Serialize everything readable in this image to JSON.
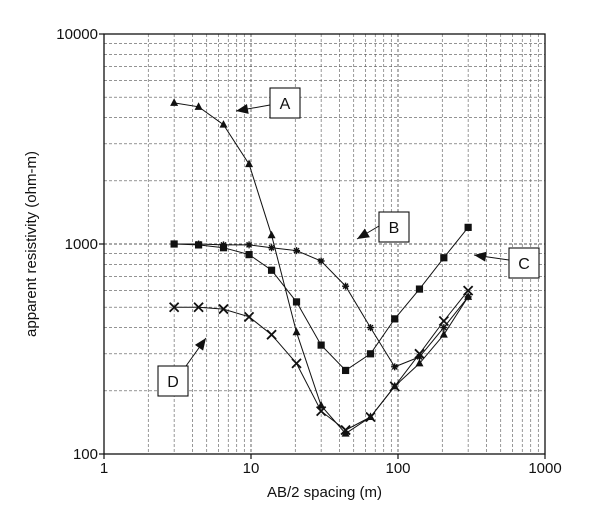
{
  "chart_data": {
    "type": "line",
    "xlabel": "AB/2 spacing (m)",
    "ylabel": "apparent resistivity (ohm-m)",
    "xscale": "log",
    "yscale": "log",
    "xlim": [
      1,
      1000
    ],
    "ylim": [
      100,
      10000
    ],
    "grid": true,
    "x_tick_labels": [
      "1",
      "10",
      "100",
      "1000"
    ],
    "y_tick_labels": [
      "100",
      "1000",
      "10000"
    ],
    "series": [
      {
        "name": "A",
        "marker": "triangle",
        "x": [
          3,
          4.4,
          6.5,
          9.7,
          13.8,
          20.4,
          30,
          44,
          65,
          95,
          140,
          205,
          300
        ],
        "y": [
          4700,
          4500,
          3700,
          2400,
          1100,
          380,
          170,
          125,
          150,
          210,
          270,
          370,
          560
        ]
      },
      {
        "name": "B",
        "marker": "star",
        "x": [
          3,
          4.4,
          6.5,
          9.7,
          13.8,
          20.4,
          30,
          44,
          65,
          95,
          140,
          205,
          300
        ],
        "y": [
          1000,
          1000,
          990,
          990,
          960,
          930,
          830,
          630,
          400,
          260,
          290,
          400,
          560
        ]
      },
      {
        "name": "C",
        "marker": "square",
        "x": [
          3,
          4.4,
          6.5,
          9.7,
          13.8,
          20.4,
          30,
          44,
          65,
          95,
          140,
          205,
          300
        ],
        "y": [
          1000,
          990,
          960,
          890,
          750,
          530,
          330,
          250,
          300,
          440,
          610,
          860,
          1200
        ]
      },
      {
        "name": "D",
        "marker": "x",
        "x": [
          3,
          4.4,
          6.5,
          9.7,
          13.8,
          20.4,
          30,
          44,
          65,
          95,
          140,
          205,
          300
        ],
        "y": [
          500,
          500,
          490,
          450,
          370,
          270,
          160,
          130,
          150,
          210,
          300,
          430,
          600
        ]
      }
    ],
    "annotations": [
      {
        "label": "A",
        "target_series": "A"
      },
      {
        "label": "B",
        "target_series": "B"
      },
      {
        "label": "C",
        "target_series": "C"
      },
      {
        "label": "D",
        "target_series": "D"
      }
    ]
  }
}
